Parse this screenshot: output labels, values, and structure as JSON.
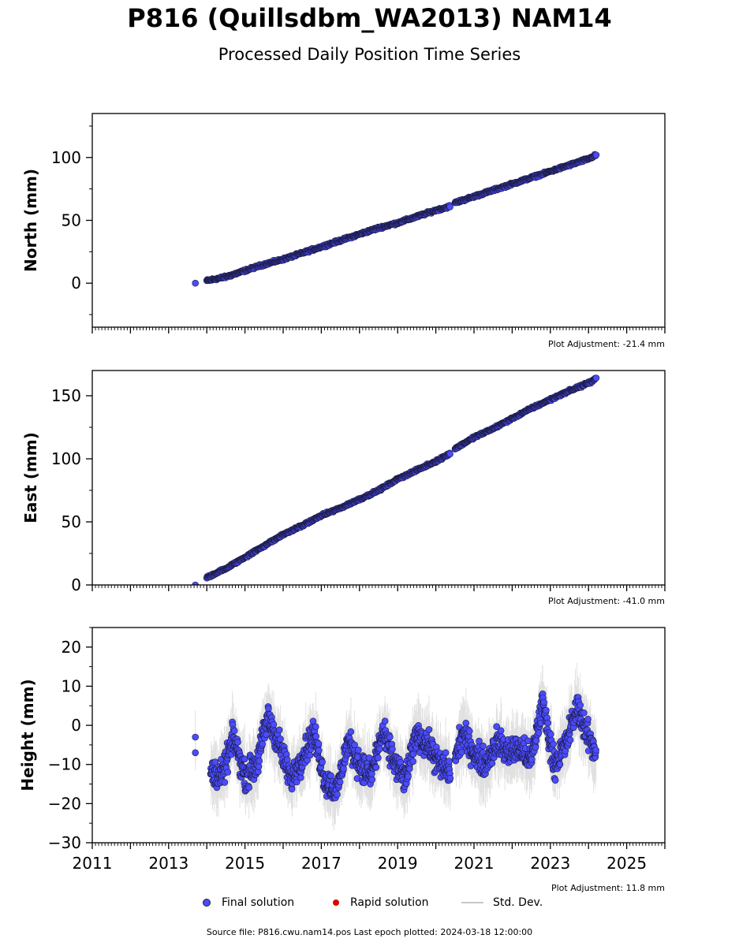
{
  "title": "P816 (Quillsdbm_WA2013) NAM14",
  "subtitle": "Processed Daily Position Time Series",
  "legend": {
    "final": "Final solution",
    "rapid": "Rapid solution",
    "std": "Std. Dev."
  },
  "colors": {
    "final": "#4b4bff",
    "rapid": "#e00000",
    "std": "#c8c8c8",
    "edge": "#1a1a3a"
  },
  "source_text": "Source file: P816.cwu.nam14.pos  Last epoch plotted: 2024-03-18 12:00:00",
  "chart_data": [
    {
      "type": "scatter",
      "ylabel": "North (mm)",
      "adjustment": "Plot Adjustment: -21.4 mm",
      "xlim": [
        2011,
        2026
      ],
      "ylim": [
        -35,
        135
      ],
      "yticks": [
        0,
        50,
        100
      ],
      "ytick_labels": [
        "0",
        "50",
        "100"
      ],
      "show_xtick_labels": false,
      "series": [
        {
          "x": [
            2013.7,
            2014.0,
            2014.5,
            2015.0,
            2015.5,
            2016.0,
            2016.5,
            2017.0,
            2017.5,
            2018.0,
            2018.5,
            2019.0,
            2019.5,
            2020.0,
            2020.35,
            2020.5,
            2021.0,
            2021.5,
            2022.0,
            2022.5,
            2023.0,
            2023.5,
            2024.0,
            2024.2
          ],
          "y": [
            0,
            2,
            5,
            10,
            15,
            19,
            24,
            29,
            34,
            39,
            44,
            48,
            53,
            58,
            61,
            64,
            69,
            74,
            79,
            84,
            89,
            94,
            99,
            102
          ]
        }
      ]
    },
    {
      "type": "scatter",
      "ylabel": "East (mm)",
      "adjustment": "Plot Adjustment: -41.0 mm",
      "xlim": [
        2011,
        2026
      ],
      "ylim": [
        0,
        170
      ],
      "yticks": [
        0,
        50,
        100,
        150
      ],
      "ytick_labels": [
        "0",
        "50",
        "100",
        "150"
      ],
      "show_xtick_labels": false,
      "series": [
        {
          "x": [
            2013.7,
            2014.0,
            2014.5,
            2015.0,
            2015.5,
            2016.0,
            2016.5,
            2017.0,
            2017.5,
            2018.0,
            2018.5,
            2019.0,
            2019.5,
            2020.0,
            2020.35,
            2020.5,
            2021.0,
            2021.5,
            2022.0,
            2022.5,
            2023.0,
            2023.5,
            2024.0,
            2024.2
          ],
          "y": [
            0,
            6,
            13,
            22,
            31,
            40,
            47,
            55,
            61,
            68,
            75,
            84,
            91,
            98,
            104,
            108,
            117,
            124,
            132,
            140,
            147,
            154,
            160,
            164
          ]
        }
      ]
    },
    {
      "type": "scatter",
      "ylabel": "Height (mm)",
      "adjustment": "Plot Adjustment: 11.8 mm",
      "xlim": [
        2011,
        2026
      ],
      "ylim": [
        -30,
        25
      ],
      "yticks": [
        -30,
        -20,
        -10,
        0,
        10,
        20
      ],
      "ytick_labels": [
        "−30",
        "−20",
        "−10",
        "0",
        "10",
        "20"
      ],
      "show_xtick_labels": true,
      "xticks": [
        2011,
        2013,
        2015,
        2017,
        2019,
        2021,
        2023,
        2025
      ],
      "xtick_labels": [
        "2011",
        "2013",
        "2015",
        "2017",
        "2019",
        "2021",
        "2023",
        "2025"
      ],
      "series": [
        {
          "x": [
            2013.7,
            2014.1,
            2014.4,
            2014.7,
            2015.0,
            2015.3,
            2015.6,
            2015.9,
            2016.2,
            2016.5,
            2016.8,
            2017.1,
            2017.4,
            2017.7,
            2018.0,
            2018.3,
            2018.6,
            2018.9,
            2019.2,
            2019.5,
            2019.8,
            2020.1,
            2020.4,
            2020.7,
            2021.0,
            2021.3,
            2021.6,
            2021.9,
            2022.2,
            2022.5,
            2022.8,
            2023.1,
            2023.4,
            2023.7,
            2024.0,
            2024.2
          ],
          "y": [
            -3,
            -12,
            -13,
            -3,
            -13,
            -10,
            2,
            -5,
            -14,
            -8,
            -2,
            -14,
            -17,
            -4,
            -10,
            -13,
            -2,
            -9,
            -14,
            -2,
            -5,
            -10,
            -12,
            -2,
            -7,
            -10,
            -4,
            -7,
            -6,
            -9,
            6,
            -10,
            -5,
            5,
            -3,
            -7
          ]
        }
      ]
    }
  ]
}
